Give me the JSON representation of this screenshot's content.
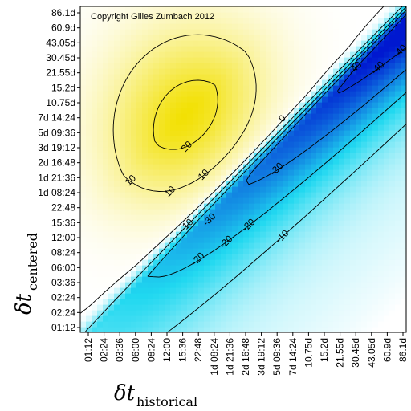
{
  "chart_data": {
    "type": "heatmap",
    "title": "",
    "annotation": "Copyright Gilles Zumbach 2012",
    "xlabel": {
      "symbol": "δt",
      "subscript": "historical"
    },
    "ylabel": {
      "symbol": "δt",
      "subscript": "centered"
    },
    "x_ticks": [
      "01:12",
      "02:24",
      "03:36",
      "06:00",
      "08:24",
      "12:00",
      "15:36",
      "22:48",
      "1d 08:24",
      "1d 21:36",
      "2d 16:48",
      "3d 19:12",
      "5d 09:36",
      "7d 14:24",
      "10.75d",
      "15.2d",
      "21.55d",
      "30.45d",
      "43.05d",
      "60.9d",
      "86.1d"
    ],
    "y_ticks": [
      "01:12",
      "02:24",
      "02:24",
      "03:36",
      "06:00",
      "08:24",
      "12:00",
      "15:36",
      "22:48",
      "1d 08:24",
      "1d 21:36",
      "2d 16:48",
      "3d 19:12",
      "5d 09:36",
      "7d 14:24",
      "10.75d",
      "15.2d",
      "21.55d",
      "30.45d",
      "43.05d",
      "60.9d",
      "86.1d"
    ],
    "contour_levels": [
      -40,
      -30,
      -20,
      -10,
      0,
      10,
      20
    ],
    "contour_labels": [
      {
        "text": "20",
        "level": 20
      },
      {
        "text": "10",
        "level": 10
      },
      {
        "text": "10",
        "level": 10
      },
      {
        "text": "10",
        "level": 10
      },
      {
        "text": "0",
        "level": 0
      },
      {
        "text": "-10",
        "level": -10
      },
      {
        "text": "-10",
        "level": -10
      },
      {
        "text": "-20",
        "level": -20
      },
      {
        "text": "-20",
        "level": -20
      },
      {
        "text": "-20",
        "level": -20
      },
      {
        "text": "-30",
        "level": -30
      },
      {
        "text": "-30",
        "level": -30
      },
      {
        "text": "-40",
        "level": -40
      },
      {
        "text": "-40",
        "level": -40
      },
      {
        "text": "-40",
        "level": -40
      }
    ],
    "colorscale": {
      "max_positive": "#f2e000",
      "zero": "#ffffff",
      "light_negative": "#20d8f0",
      "strong_negative": "#0018d0"
    }
  }
}
